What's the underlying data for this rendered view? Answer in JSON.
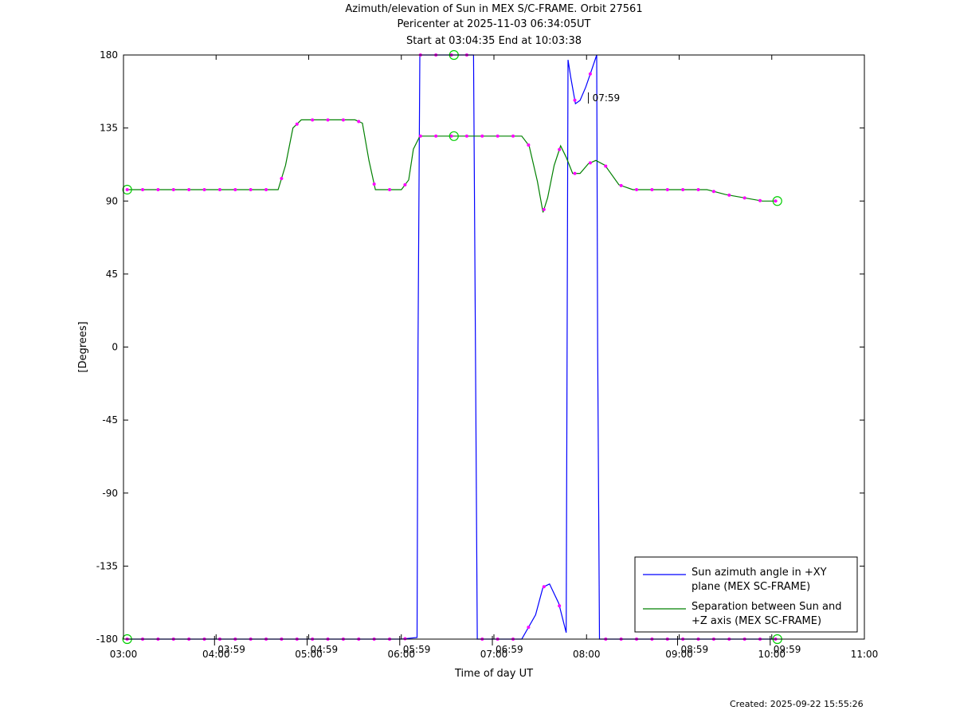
{
  "title": {
    "line1": "Azimuth/elevation of Sun in MEX S/C-FRAME.  Orbit 27561",
    "line2": "Pericenter at 2025-11-03 06:34:05UT",
    "line3": "Start at 03:04:35 End at 10:03:38"
  },
  "footer": {
    "created": "Created: 2025-09-22 15:55:26"
  },
  "colors": {
    "azimuth": "#0000ff",
    "separation": "#008000",
    "markers": "#ff00ff",
    "endpoint": "#00cc00"
  },
  "chart_data": {
    "type": "line",
    "xlabel": "Time of day UT",
    "ylabel": "[Degrees]",
    "xlim": [
      3,
      11
    ],
    "ylim": [
      -180,
      180
    ],
    "x_tick_labels": [
      "03:00",
      "04:00",
      "05:00",
      "06:00",
      "07:00",
      "08:00",
      "09:00",
      "10:00",
      "11:00"
    ],
    "y_tick_labels": [
      "180",
      "135",
      "90",
      "45",
      "0",
      "-45",
      "-90",
      "-135",
      "-180"
    ],
    "hour_markers": [
      {
        "label": "03:59",
        "x": 3.983
      },
      {
        "label": "04:59",
        "x": 4.983
      },
      {
        "label": "05:59",
        "x": 5.983
      },
      {
        "label": "06:59",
        "x": 6.983
      },
      {
        "label": "08:59",
        "x": 8.983
      },
      {
        "label": "09:59",
        "x": 9.983
      }
    ],
    "annotations": [
      {
        "label": "07:59",
        "x": 8.02,
        "y": 154
      }
    ],
    "legend": {
      "position": "bottom-right"
    },
    "series": [
      {
        "name": "Sun azimuth angle in +XY plane (MEX SC-FRAME)",
        "x": [
          3.04,
          3.5,
          4.0,
          4.5,
          5.0,
          5.5,
          6.0,
          6.17,
          6.18,
          6.2,
          6.5,
          6.78,
          6.8,
          6.82,
          7.0,
          7.3,
          7.45,
          7.53,
          7.6,
          7.7,
          7.78,
          7.8,
          7.83,
          7.88,
          7.93,
          7.99,
          8.05,
          8.11,
          8.12,
          8.14,
          8.5,
          9.0,
          9.5,
          10.06
        ],
        "y": [
          -180,
          -180,
          -180,
          -180,
          -180,
          -180,
          -180,
          -179,
          0,
          180,
          180,
          180,
          0,
          -180,
          -180,
          -180,
          -165,
          -148,
          -146,
          -158,
          -176,
          177,
          166,
          150,
          152,
          160,
          170,
          180,
          0,
          -180,
          -180,
          -180,
          -180,
          -180
        ]
      },
      {
        "name": "Separation between Sun and +Z axis (MEX SC-FRAME)",
        "x": [
          3.04,
          3.5,
          4.0,
          4.5,
          4.67,
          4.75,
          4.83,
          4.92,
          5.0,
          5.5,
          5.58,
          5.65,
          5.72,
          6.0,
          6.08,
          6.13,
          6.2,
          6.4,
          6.6,
          6.8,
          7.0,
          7.3,
          7.38,
          7.47,
          7.53,
          7.58,
          7.65,
          7.72,
          7.78,
          7.85,
          7.93,
          8.02,
          8.1,
          8.2,
          8.35,
          8.5,
          9.0,
          9.3,
          9.5,
          9.7,
          9.9,
          10.06
        ],
        "y": [
          97,
          97,
          97,
          97,
          97,
          112,
          135,
          140,
          140,
          140,
          138,
          115,
          97,
          97,
          103,
          122,
          130,
          130,
          130,
          130,
          130,
          130,
          124,
          102,
          83,
          92,
          112,
          124,
          117,
          107,
          107,
          113,
          115,
          112,
          100,
          97,
          97,
          97,
          94,
          92,
          90,
          90
        ]
      }
    ]
  }
}
